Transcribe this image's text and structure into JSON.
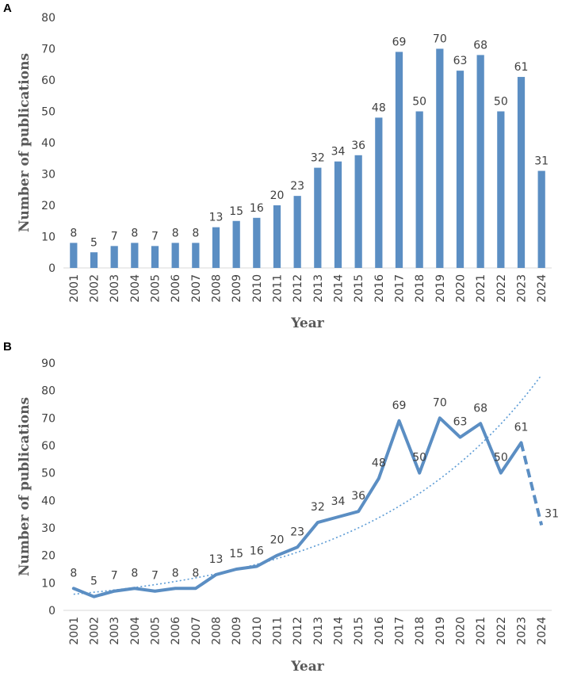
{
  "panels": {
    "a": "A",
    "b": "B"
  },
  "colors": {
    "bar": "#5B8EC3",
    "line": "#5B8EC3",
    "trend": "#5B9BD5",
    "axis": "#D9D9D9",
    "text": "#404040"
  },
  "chart_data": [
    {
      "type": "bar",
      "categories": [
        "2001",
        "2002",
        "2003",
        "2004",
        "2005",
        "2006",
        "2007",
        "2008",
        "2009",
        "2010",
        "2011",
        "2012",
        "2013",
        "2014",
        "2015",
        "2016",
        "2017",
        "2018",
        "2019",
        "2020",
        "2021",
        "2022",
        "2023",
        "2024"
      ],
      "values": [
        8,
        5,
        7,
        8,
        7,
        8,
        8,
        13,
        15,
        16,
        20,
        23,
        32,
        34,
        36,
        48,
        69,
        50,
        70,
        63,
        68,
        50,
        61,
        31
      ],
      "xlabel": "Year",
      "ylabel": "Number of publications",
      "ylim": [
        0,
        80
      ],
      "yticks": [
        0,
        10,
        20,
        30,
        40,
        50,
        60,
        70,
        80
      ],
      "grid": false
    },
    {
      "type": "line",
      "categories": [
        "2001",
        "2002",
        "2003",
        "2004",
        "2005",
        "2006",
        "2007",
        "2008",
        "2009",
        "2010",
        "2011",
        "2012",
        "2013",
        "2014",
        "2015",
        "2016",
        "2017",
        "2018",
        "2019",
        "2020",
        "2021",
        "2022",
        "2023",
        "2024"
      ],
      "values": [
        8,
        5,
        7,
        8,
        7,
        8,
        8,
        13,
        15,
        16,
        20,
        23,
        32,
        34,
        36,
        48,
        69,
        50,
        70,
        63,
        68,
        50,
        61,
        31
      ],
      "dashed_last_segment": true,
      "trendline": "exponential",
      "xlabel": "Year",
      "ylabel": "Number of publications",
      "ylim": [
        0,
        90
      ],
      "yticks": [
        0,
        10,
        20,
        30,
        40,
        50,
        60,
        70,
        80,
        90
      ],
      "grid": false
    }
  ]
}
